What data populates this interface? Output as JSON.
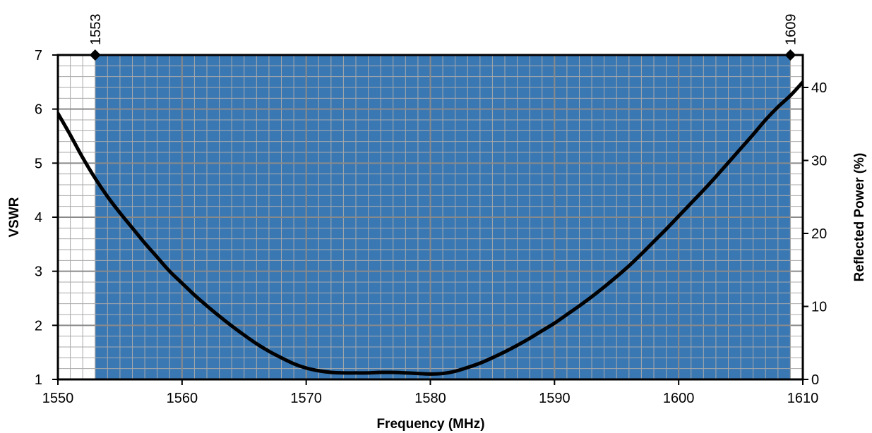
{
  "colors": {
    "band_fill": "#3a78b4",
    "grid_major": "#8a8a8a",
    "grid_minor": "#a8a8a8",
    "curve": "#000000",
    "frame": "#000000",
    "background": "#ffffff"
  },
  "chart_data": {
    "type": "line",
    "title": "",
    "xlabel": "Frequency (MHz)",
    "ylabel": "VSWR",
    "y2label": "Reflected Power (%)",
    "xlim": [
      1550,
      1610
    ],
    "ylim": [
      1,
      7
    ],
    "y2lim": [
      0,
      44.444
    ],
    "x_ticks": [
      1550,
      1560,
      1570,
      1580,
      1590,
      1600,
      1610
    ],
    "y_ticks": [
      1,
      2,
      3,
      4,
      5,
      6,
      7
    ],
    "y2_ticks": [
      0,
      10,
      20,
      30,
      40
    ],
    "grid": true,
    "band": {
      "start": 1553,
      "end": 1609,
      "start_label": "1553",
      "end_label": "1609"
    },
    "series": [
      {
        "x": [
          1550,
          1551,
          1552,
          1553,
          1554,
          1555,
          1556,
          1557,
          1558,
          1559,
          1560,
          1561,
          1562,
          1563,
          1564,
          1565,
          1566,
          1567,
          1568,
          1569,
          1570,
          1571,
          1572,
          1573,
          1574,
          1575,
          1576,
          1577,
          1578,
          1579,
          1580,
          1581,
          1582,
          1583,
          1584,
          1585,
          1586,
          1587,
          1588,
          1589,
          1590,
          1591,
          1592,
          1593,
          1594,
          1595,
          1596,
          1597,
          1598,
          1599,
          1600,
          1601,
          1602,
          1603,
          1604,
          1605,
          1606,
          1607,
          1608,
          1609,
          1610
        ],
        "values": [
          5.92,
          5.52,
          5.1,
          4.72,
          4.38,
          4.08,
          3.8,
          3.52,
          3.26,
          3.0,
          2.78,
          2.56,
          2.36,
          2.17,
          1.99,
          1.82,
          1.66,
          1.52,
          1.4,
          1.29,
          1.21,
          1.16,
          1.13,
          1.12,
          1.12,
          1.12,
          1.13,
          1.13,
          1.12,
          1.11,
          1.1,
          1.11,
          1.15,
          1.22,
          1.3,
          1.4,
          1.51,
          1.63,
          1.76,
          1.9,
          2.04,
          2.2,
          2.36,
          2.53,
          2.71,
          2.9,
          3.1,
          3.32,
          3.55,
          3.78,
          4.02,
          4.26,
          4.5,
          4.75,
          5.01,
          5.27,
          5.53,
          5.8,
          6.04,
          6.25,
          6.5
        ]
      }
    ]
  }
}
